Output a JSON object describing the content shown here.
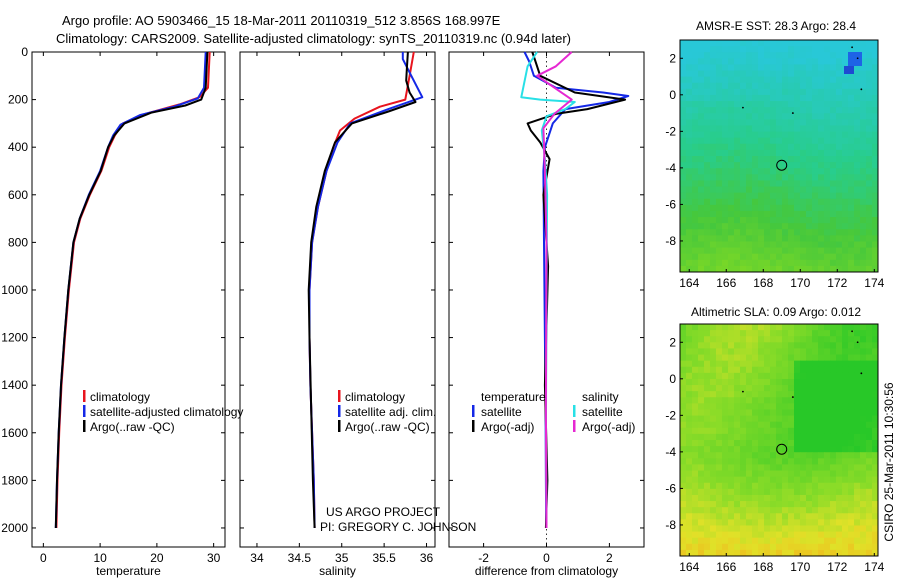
{
  "header": {
    "line1": "Argo profile: AO 5903466_15 18-Mar-2011 20110319_512 3.856S 168.997E",
    "line2": "Climatology: CARS2009. Satellite-adjusted climatology: synTS_20110319.nc (0.94d later)"
  },
  "credits": {
    "project": "US ARGO PROJECT",
    "pi": "PI: GREGORY C. JOHNSON",
    "stamp": "CSIRO 25-Mar-2011 10:30:56"
  },
  "colors": {
    "red": "#e8141e",
    "blue": "#1428e6",
    "black": "#000000",
    "cyan": "#28e0e6",
    "magenta": "#e628d2"
  },
  "chart_data": [
    {
      "type": "line",
      "name": "temperature-profile",
      "xlabel": "temperature",
      "ylabel": "",
      "xlim": [
        -2,
        32
      ],
      "ylim": [
        0,
        2080
      ],
      "xticks": [
        0,
        10,
        20,
        30
      ],
      "yticks": [
        0,
        200,
        400,
        600,
        800,
        1000,
        1200,
        1400,
        1600,
        1800,
        2000
      ],
      "legend": [
        "climatology",
        "satellite-adjusted climatology",
        "Argo(..raw -QC)"
      ],
      "series": [
        {
          "name": "climatology",
          "color": "red",
          "x": [
            29.3,
            29.0,
            27.5,
            24,
            18,
            14,
            12.6,
            11.6,
            10.2,
            8.2,
            6.5,
            5.4,
            4.5,
            3.8,
            3.2,
            2.8,
            2.5,
            2.3
          ],
          "y": [
            0,
            150,
            190,
            220,
            260,
            300,
            350,
            400,
            500,
            600,
            700,
            800,
            1000,
            1200,
            1400,
            1600,
            1800,
            2000
          ]
        },
        {
          "name": "satellite",
          "color": "blue",
          "x": [
            28.6,
            28.3,
            27.2,
            23,
            17,
            13.6,
            12.3,
            11.4,
            10.0,
            8.0,
            6.4,
            5.3,
            4.4,
            3.7,
            3.1,
            2.7,
            2.4,
            2.2
          ],
          "y": [
            0,
            150,
            195,
            230,
            265,
            305,
            350,
            400,
            500,
            600,
            700,
            800,
            1000,
            1200,
            1400,
            1600,
            1800,
            2000
          ]
        },
        {
          "name": "argo",
          "color": "black",
          "x": [
            28.9,
            28.6,
            27.8,
            25,
            19,
            14.3,
            12.5,
            11.4,
            10.1,
            8.1,
            6.4,
            5.3,
            4.4,
            3.7,
            3.1,
            2.7,
            2.4,
            2.2
          ],
          "y": [
            0,
            150,
            200,
            225,
            255,
            300,
            350,
            400,
            500,
            600,
            700,
            800,
            1000,
            1200,
            1400,
            1600,
            1800,
            2000
          ]
        }
      ]
    },
    {
      "type": "line",
      "name": "salinity-profile",
      "xlabel": "salinity",
      "ylabel": "",
      "xlim": [
        33.8,
        36.1
      ],
      "ylim": [
        0,
        2080
      ],
      "xticks": [
        34,
        34.5,
        35,
        35.5,
        36
      ],
      "yticks": [
        0,
        200,
        400,
        600,
        800,
        1000,
        1200,
        1400,
        1600,
        1800,
        2000
      ],
      "legend": [
        "climatology",
        "satellite adj. clim.",
        "Argo(..raw -QC)"
      ],
      "series": [
        {
          "name": "climatology",
          "color": "red",
          "x": [
            35.85,
            35.8,
            35.75,
            35.45,
            35.15,
            34.98,
            34.9,
            34.82,
            34.72,
            34.65,
            34.62,
            34.62,
            34.63,
            34.65,
            34.67,
            34.68
          ],
          "y": [
            0,
            100,
            200,
            230,
            280,
            330,
            400,
            500,
            650,
            800,
            1000,
            1200,
            1400,
            1600,
            1800,
            2000
          ]
        },
        {
          "name": "satellite",
          "color": "blue",
          "x": [
            35.72,
            35.72,
            35.82,
            35.95,
            35.55,
            35.1,
            34.95,
            34.82,
            34.72,
            34.65,
            34.62,
            34.62,
            34.63,
            34.65,
            34.67,
            34.68
          ],
          "y": [
            0,
            30,
            100,
            190,
            240,
            300,
            380,
            500,
            650,
            800,
            1000,
            1200,
            1400,
            1600,
            1800,
            2000
          ]
        },
        {
          "name": "argo",
          "color": "black",
          "x": [
            35.78,
            35.77,
            35.76,
            35.8,
            35.87,
            35.55,
            35.12,
            34.92,
            34.8,
            34.7,
            34.64,
            34.61,
            34.62,
            34.64,
            34.66,
            34.68
          ],
          "y": [
            0,
            60,
            120,
            170,
            210,
            250,
            300,
            380,
            500,
            650,
            800,
            1000,
            1200,
            1500,
            1800,
            2000
          ]
        }
      ]
    },
    {
      "type": "line",
      "name": "difference-profile",
      "xlabel": "difference from climatology",
      "ylabel": "",
      "xlim": [
        -3.1,
        3.1
      ],
      "ylim": [
        0,
        2080
      ],
      "xticks": [
        -2,
        0,
        2
      ],
      "yticks": [
        0,
        200,
        400,
        600,
        800,
        1000,
        1200,
        1400,
        1600,
        1800,
        2000
      ],
      "legend_headers": [
        "temperature",
        "salinity"
      ],
      "legend": [
        "satellite",
        "Argo(-adj)",
        "satellite",
        "Argo(-adj)"
      ],
      "series": [
        {
          "name": "temperature satellite",
          "color": "blue",
          "x": [
            -0.7,
            -0.55,
            -0.4,
            0.3,
            1.8,
            2.6,
            2.0,
            0.6,
            0.2,
            -0.05,
            -0.1,
            -0.08,
            -0.05,
            -0.03,
            -0.02,
            -0.01
          ],
          "y": [
            0,
            40,
            100,
            150,
            170,
            185,
            210,
            240,
            300,
            400,
            500,
            800,
            1200,
            1500,
            1800,
            2000
          ]
        },
        {
          "name": "temperature argo",
          "color": "black",
          "x": [
            -0.45,
            -0.35,
            -0.2,
            0.9,
            2.5,
            1.3,
            0.3,
            -0.6,
            -0.5,
            -0.2,
            0.1,
            -0.1,
            0.05,
            -0.05,
            0.03,
            -0.02
          ],
          "y": [
            0,
            40,
            100,
            170,
            200,
            240,
            260,
            300,
            330,
            380,
            450,
            600,
            900,
            1400,
            1800,
            2000
          ]
        },
        {
          "name": "salinity satellite",
          "color": "cyan",
          "x": [
            -0.3,
            -0.6,
            -0.8,
            -0.2,
            0.9,
            0.6,
            0.0,
            -0.15,
            -0.05,
            0.02,
            0.0,
            -0.02,
            0.0
          ],
          "y": [
            0,
            60,
            190,
            200,
            210,
            240,
            270,
            330,
            450,
            600,
            1000,
            1600,
            2000
          ]
        },
        {
          "name": "salinity argo",
          "color": "magenta",
          "x": [
            0.8,
            0.3,
            -0.3,
            0.8,
            0.25,
            -0.1,
            -0.05,
            0.0,
            -0.02,
            0.0
          ],
          "y": [
            0,
            60,
            100,
            200,
            260,
            320,
            500,
            800,
            1500,
            2000
          ]
        }
      ]
    }
  ],
  "maps": [
    {
      "name": "sst-map",
      "title": "AMSR-E SST: 28.3 Argo: 28.4",
      "xlim": [
        163.5,
        174.2
      ],
      "ylim": [
        -9.7,
        3.0
      ],
      "xticks": [
        164,
        166,
        168,
        170,
        172,
        174
      ],
      "yticks": [
        -8,
        -6,
        -4,
        -2,
        0,
        2
      ],
      "marker": {
        "lon": 168.997,
        "lat": -3.856
      }
    },
    {
      "name": "sla-map",
      "title": "Altimetric SLA: 0.09 Argo: 0.012",
      "xlim": [
        163.5,
        174.2
      ],
      "ylim": [
        -9.7,
        3.0
      ],
      "xticks": [
        164,
        166,
        168,
        170,
        172,
        174
      ],
      "yticks": [
        -8,
        -6,
        -4,
        -2,
        0,
        2
      ],
      "marker": {
        "lon": 168.997,
        "lat": -3.856
      }
    }
  ]
}
